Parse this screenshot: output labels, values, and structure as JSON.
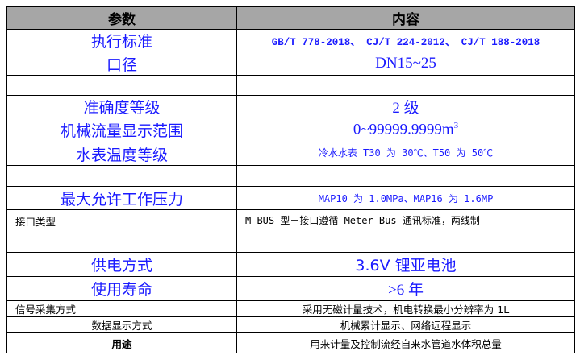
{
  "header": {
    "param": "参数",
    "content": "内容"
  },
  "rows": [
    {
      "param": "执行标准",
      "value": "GB/T 778-2018、 CJ/T 224-2012、 CJ/T 188-2018"
    },
    {
      "param": "口径",
      "value": "DN15~25"
    },
    {
      "param": "",
      "value": ""
    },
    {
      "param": "准确度等级",
      "value": "2 级"
    },
    {
      "param": "机械流量显示范围",
      "value": "0~99999.9999m",
      "sup": "3"
    },
    {
      "param": "水表温度等级",
      "value": "冷水水表 T30 为 30℃、T50 为 50℃"
    },
    {
      "param": "",
      "value": ""
    },
    {
      "param": "最大允许工作压力",
      "value": "MAP10 为 1.0MPa、MAP16 为 1.6MP"
    },
    {
      "param": "接口类型",
      "value": "M-BUS 型－接口遵循 Meter-Bus 通讯标准，两线制"
    },
    {
      "param": "供电方式",
      "value": "3.6V 锂亚电池"
    },
    {
      "param": "使用寿命",
      "value": ">6 年"
    },
    {
      "param": "信号采集方式",
      "value": "采用无磁计量技术，机电转换最小分辨率为 1L"
    },
    {
      "param": "数据显示方式",
      "value": "机械累计显示、网络远程显示"
    },
    {
      "param": "用途",
      "value": "用来计量及控制流经自来水管道水体积总量"
    }
  ]
}
